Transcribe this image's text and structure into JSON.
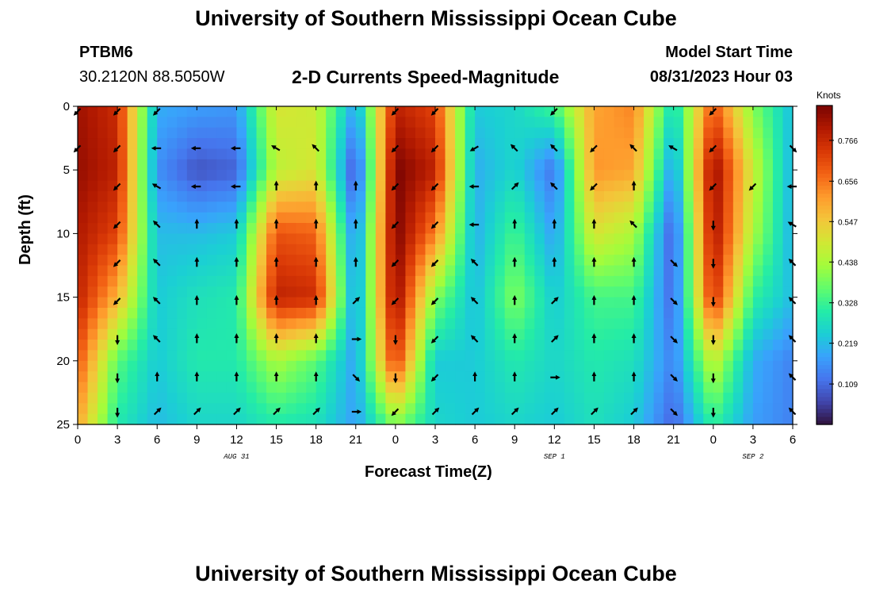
{
  "page": {
    "title_top": "University of Southern Mississippi Ocean Cube",
    "title_bottom": "University of Southern Mississippi Ocean Cube",
    "station_id": "PTBM6",
    "station_coords": "30.2120N  88.5050W",
    "chart_title": "2-D Currents Speed-Magnitude",
    "model_start_label": "Model Start Time",
    "model_start_value": "08/31/2023 Hour 03",
    "colorbar_units": "Knots"
  },
  "chart_data": {
    "type": "heatmap",
    "title": "2-D Currents Speed-Magnitude",
    "xlabel": "Forecast Time(Z)",
    "ylabel": "Depth (ft)",
    "x_tick_labels": [
      "0",
      "3",
      "6",
      "9",
      "12",
      "15",
      "18",
      "21",
      "0",
      "3",
      "6",
      "9",
      "12",
      "15",
      "18",
      "21",
      "0",
      "3",
      "6"
    ],
    "x_hours": [
      0,
      3,
      6,
      9,
      12,
      15,
      18,
      21,
      24,
      27,
      30,
      33,
      36,
      39,
      42,
      45,
      48,
      51,
      54
    ],
    "xlim": [
      0,
      54
    ],
    "y_ticks": [
      0,
      5,
      10,
      15,
      20,
      25
    ],
    "y_tick_labels": [
      "0",
      "5",
      "10",
      "15",
      "20",
      "25"
    ],
    "ylim": [
      0,
      25
    ],
    "date_labels": [
      {
        "text": "AUG 31",
        "hour": 12
      },
      {
        "text": "SEP 1",
        "hour": 36
      },
      {
        "text": "SEP 2",
        "hour": 51
      }
    ],
    "colorbar": {
      "units": "Knots",
      "min": 0.0,
      "max": 0.86,
      "tick_values": [
        0.109,
        0.219,
        0.328,
        0.438,
        0.547,
        0.656,
        0.766
      ],
      "tick_labels": [
        "0.109",
        "0.219",
        "0.328",
        "0.438",
        "0.547",
        "0.656",
        "0.766"
      ],
      "colors": [
        "#30123b",
        "#4145ab",
        "#4675ed",
        "#39a2fc",
        "#1bcfd4",
        "#24eca6",
        "#61fc6c",
        "#a4fc3b",
        "#d1e834",
        "#f3c63a",
        "#fe9b2d",
        "#f36315",
        "#d93806",
        "#b11901",
        "#7a0402"
      ]
    },
    "hours": [
      0,
      3,
      6,
      9,
      12,
      15,
      18,
      21,
      24,
      27,
      30,
      33,
      36,
      39,
      42,
      45,
      48,
      51,
      54
    ],
    "depths_ft": [
      0,
      5,
      10,
      15,
      20,
      25
    ],
    "speed_knots": [
      [
        0.82,
        0.76,
        0.2,
        0.18,
        0.17,
        0.5,
        0.48,
        0.18,
        0.78,
        0.72,
        0.24,
        0.26,
        0.34,
        0.6,
        0.64,
        0.26,
        0.7,
        0.4,
        0.22
      ],
      [
        0.83,
        0.78,
        0.16,
        0.08,
        0.1,
        0.46,
        0.5,
        0.06,
        0.86,
        0.78,
        0.2,
        0.26,
        0.12,
        0.62,
        0.6,
        0.16,
        0.84,
        0.48,
        0.2
      ],
      [
        0.8,
        0.72,
        0.22,
        0.22,
        0.24,
        0.7,
        0.68,
        0.14,
        0.86,
        0.64,
        0.2,
        0.34,
        0.18,
        0.5,
        0.44,
        0.08,
        0.82,
        0.44,
        0.2
      ],
      [
        0.78,
        0.58,
        0.24,
        0.28,
        0.3,
        0.78,
        0.76,
        0.16,
        0.84,
        0.4,
        0.22,
        0.4,
        0.24,
        0.34,
        0.34,
        0.1,
        0.76,
        0.32,
        0.22
      ],
      [
        0.7,
        0.36,
        0.24,
        0.3,
        0.3,
        0.44,
        0.36,
        0.18,
        0.74,
        0.24,
        0.24,
        0.3,
        0.26,
        0.3,
        0.28,
        0.14,
        0.48,
        0.2,
        0.14
      ],
      [
        0.6,
        0.3,
        0.22,
        0.26,
        0.26,
        0.3,
        0.28,
        0.18,
        0.4,
        0.26,
        0.24,
        0.26,
        0.24,
        0.28,
        0.24,
        0.1,
        0.32,
        0.18,
        0.14
      ]
    ],
    "arrow_depths_ft": [
      0.4,
      3.3,
      6.3,
      9.3,
      12.3,
      15.3,
      18.3,
      21.3,
      24.0
    ],
    "arrow_directions_deg": [
      [
        225,
        225,
        225,
        null,
        null,
        null,
        null,
        null,
        225,
        225,
        null,
        null,
        225,
        null,
        null,
        null,
        225,
        null,
        null
      ],
      [
        225,
        225,
        270,
        270,
        270,
        300,
        315,
        null,
        225,
        225,
        240,
        315,
        315,
        225,
        315,
        300,
        225,
        null,
        135
      ],
      [
        null,
        225,
        300,
        270,
        270,
        0,
        0,
        0,
        225,
        225,
        270,
        45,
        315,
        225,
        0,
        null,
        225,
        225,
        270
      ],
      [
        null,
        225,
        315,
        0,
        0,
        0,
        0,
        0,
        225,
        225,
        270,
        0,
        0,
        0,
        315,
        null,
        180,
        null,
        300
      ],
      [
        null,
        225,
        315,
        0,
        0,
        0,
        0,
        0,
        225,
        225,
        315,
        0,
        0,
        0,
        0,
        135,
        180,
        null,
        315
      ],
      [
        null,
        225,
        315,
        0,
        0,
        0,
        0,
        45,
        225,
        225,
        315,
        0,
        45,
        0,
        0,
        135,
        180,
        null,
        315
      ],
      [
        null,
        180,
        315,
        0,
        0,
        0,
        0,
        90,
        180,
        225,
        315,
        0,
        45,
        0,
        0,
        135,
        180,
        null,
        315
      ],
      [
        null,
        180,
        0,
        0,
        0,
        0,
        0,
        135,
        180,
        225,
        0,
        0,
        90,
        0,
        0,
        135,
        180,
        null,
        315
      ],
      [
        null,
        180,
        45,
        45,
        45,
        45,
        45,
        90,
        225,
        45,
        45,
        45,
        45,
        45,
        45,
        135,
        180,
        null,
        315
      ]
    ]
  }
}
